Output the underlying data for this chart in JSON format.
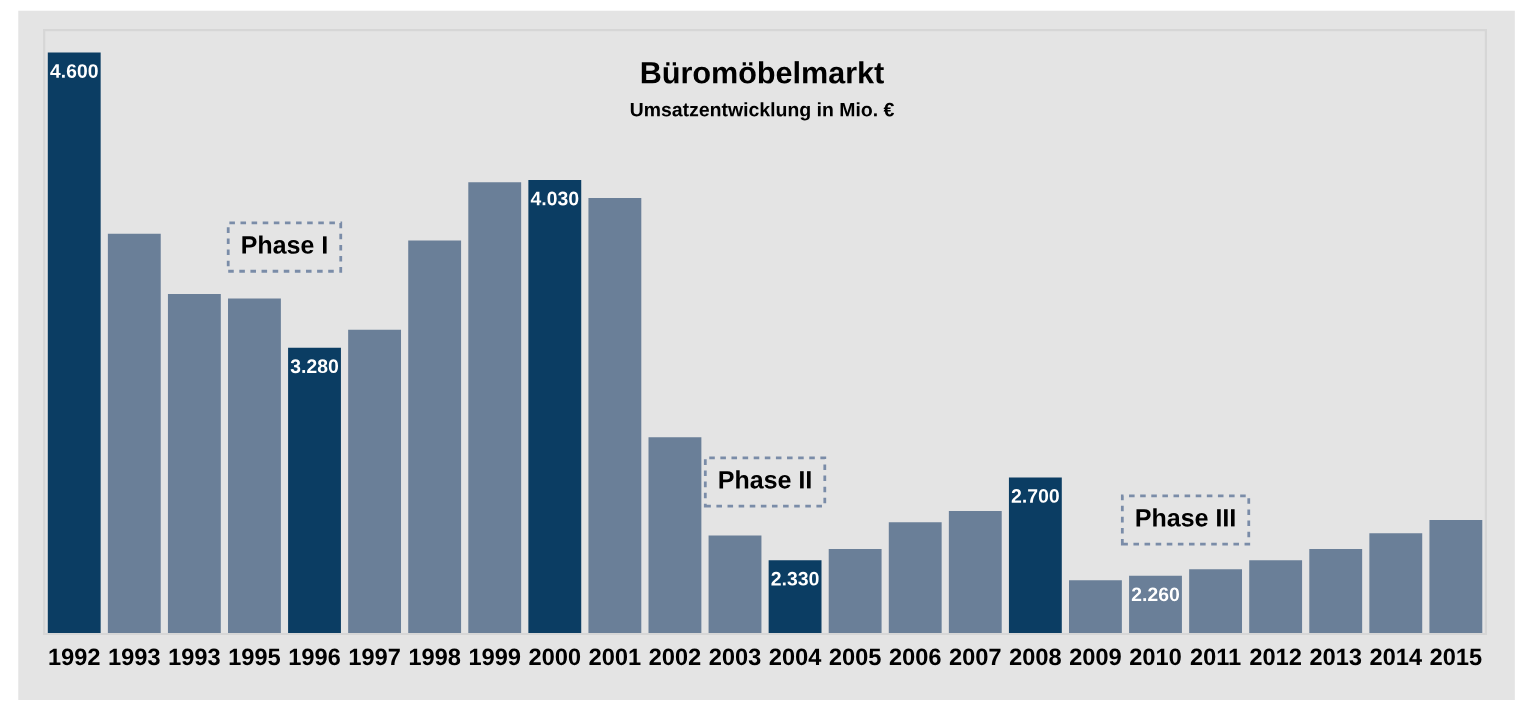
{
  "chart_data": {
    "type": "bar",
    "title": "Büromöbelmarkt",
    "subtitle": "Umsatzentwicklung in Mio. €",
    "categories": [
      "1992",
      "1993",
      "1993",
      "1995",
      "1996",
      "1997",
      "1998",
      "1999",
      "2000",
      "2001",
      "2002",
      "2003",
      "2004",
      "2005",
      "2006",
      "2007",
      "2008",
      "2009",
      "2010",
      "2011",
      "2012",
      "2013",
      "2014",
      "2015"
    ],
    "values": [
      4600,
      3790,
      3520,
      3500,
      3280,
      3360,
      3760,
      4020,
      4030,
      3950,
      2880,
      2440,
      2330,
      2380,
      2500,
      2550,
      2700,
      2240,
      2260,
      2290,
      2330,
      2380,
      2450,
      2510
    ],
    "colors": [
      "#0b3d63",
      "#6a7f98",
      "#6a7f98",
      "#6a7f98",
      "#0b3d63",
      "#6a7f98",
      "#6a7f98",
      "#6a7f98",
      "#0b3d63",
      "#6a7f98",
      "#6a7f98",
      "#6a7f98",
      "#0b3d63",
      "#6a7f98",
      "#6a7f98",
      "#6a7f98",
      "#0b3d63",
      "#6a7f98",
      "#6a7f98",
      "#6a7f98",
      "#6a7f98",
      "#6a7f98",
      "#6a7f98",
      "#6a7f98"
    ],
    "value_labels": [
      "4.600",
      null,
      null,
      null,
      "3.280",
      null,
      null,
      null,
      "4.030",
      null,
      null,
      null,
      "2.330",
      null,
      null,
      null,
      "2.700",
      null,
      "2.260",
      null,
      null,
      null,
      null,
      null
    ],
    "ylim": [
      2000,
      4700
    ],
    "annotations": [
      "Phase I",
      "Phase II",
      "Phase III"
    ],
    "grid": false,
    "legend": false
  }
}
